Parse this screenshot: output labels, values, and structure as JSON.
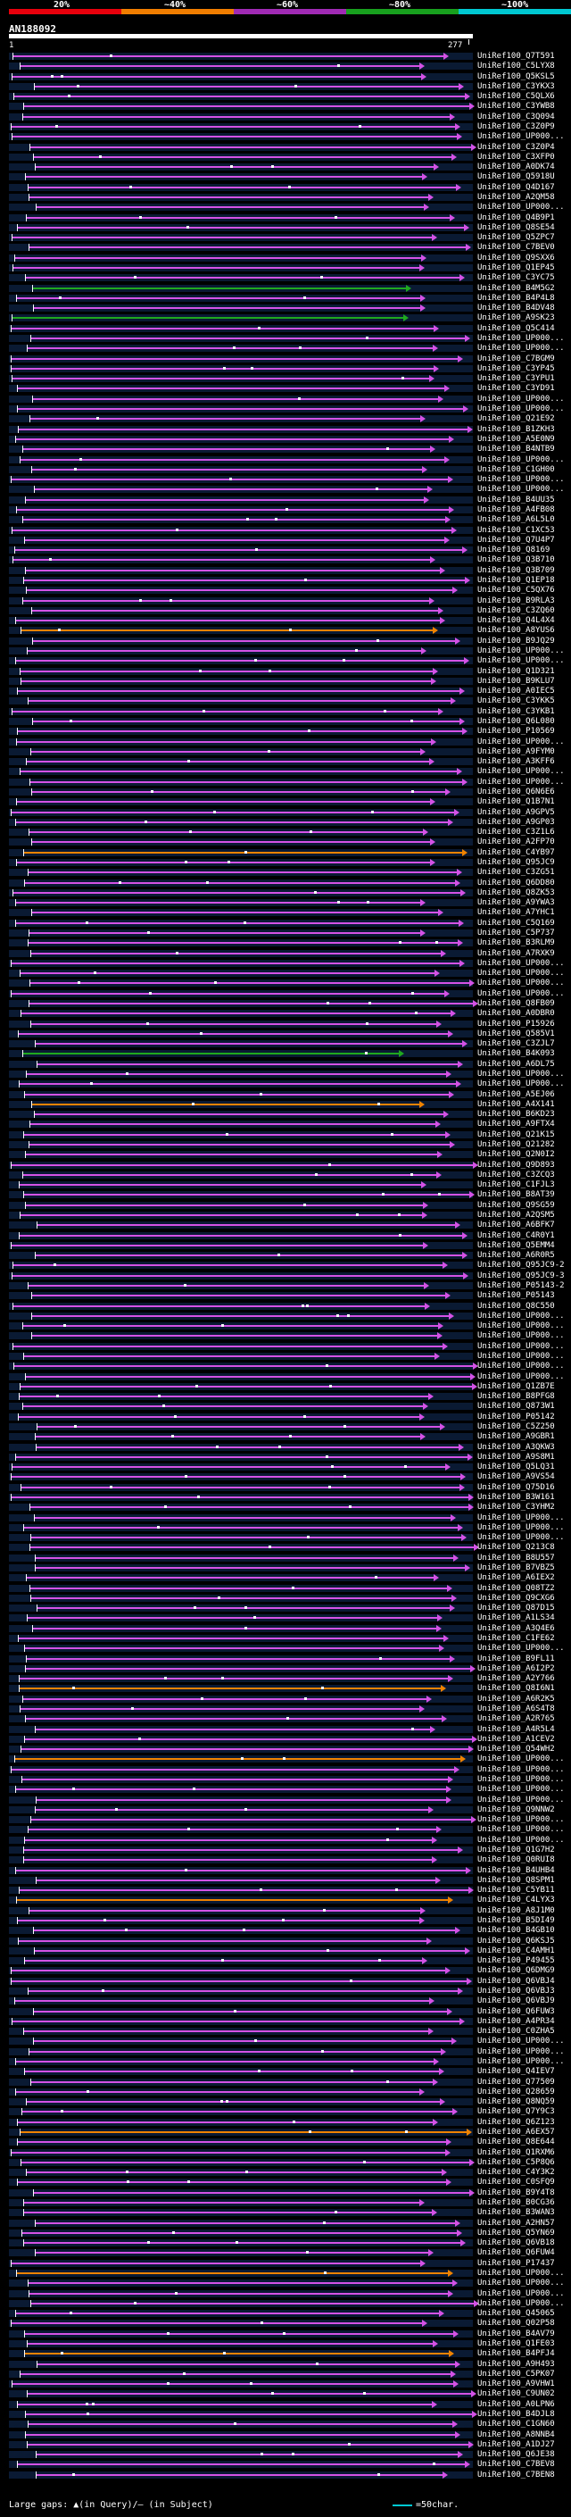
{
  "legend": {
    "items": [
      {
        "label": "20%",
        "color": "#e8000c"
      },
      {
        "label": "~40%",
        "color": "#f07d00"
      },
      {
        "label": "~60%",
        "color": "#a02ab4"
      },
      {
        "label": "~80%",
        "color": "#18a01e"
      },
      {
        "label": "~100%",
        "color": "#00c8d2"
      }
    ]
  },
  "query": {
    "name": "AN188092",
    "start": "1",
    "end": "277"
  },
  "colors": {
    "pink": "#d452e6",
    "green": "#1fa81f",
    "orange": "#f08300",
    "cyan": "#00c8d2"
  },
  "hits": [
    "UniRef100_Q7T591",
    "UniRef100_C5LYX8",
    "UniRef100_Q5KSL5",
    "UniRef100_C3YKX3",
    "UniRef100_C5QLX6",
    "UniRef100_C3YWB8",
    "UniRef100_C3Q094",
    "UniRef100_C3Z0P9",
    "UniRef100_UP000...",
    "UniRef100_C3Z0P4",
    "UniRef100_C3XFP0",
    "UniRef100_A0DK74",
    "UniRef100_Q5918U",
    "UniRef100_Q4D167",
    "UniRef100_A2QM58",
    "UniRef100_UP000...",
    "UniRef100_Q4B9P1",
    "UniRef100_Q8SE54",
    "UniRef100_Q5ZPC7",
    "UniRef100_C7BEV0",
    "UniRef100_Q9SXX6",
    "UniRef100_Q1EP45",
    "UniRef100_C3YC75",
    "UniRef100_B4M5G2",
    "UniRef100_B4P4L8",
    "UniRef100_B4DV48",
    "UniRef100_A9SK23",
    "UniRef100_Q5C414",
    "UniRef100_UP000...",
    "UniRef100_UP000...",
    "UniRef100_C7BGM9",
    "UniRef100_C3YP45",
    "UniRef100_C3YPU1",
    "UniRef100_C3YD91",
    "UniRef100_UP000...",
    "UniRef100_UP000...",
    "UniRef100_Q21E92",
    "UniRef100_B1ZKH3",
    "UniRef100_A5E0N9",
    "UniRef100_B4NTB9",
    "UniRef100_UP000...",
    "UniRef100_C1GH00",
    "UniRef100_UP000...",
    "UniRef100_UP000...",
    "UniRef100_B4UU35",
    "UniRef100_A4FB08",
    "UniRef100_A6L5L0",
    "UniRef100_C1XC53",
    "UniRef100_Q7U4P7",
    "UniRef100_Q8169",
    "UniRef100_Q3B710",
    "UniRef100_Q3B709",
    "UniRef100_Q1EP18",
    "UniRef100_C5QX76",
    "UniRef100_B9RLA3",
    "UniRef100_C3ZQ60",
    "UniRef100_Q4L4X4",
    "UniRef100_A8YUS6",
    "UniRef100_B9JQ29",
    "UniRef100_UP000...",
    "UniRef100_UP000...",
    "UniRef100_Q1D321",
    "UniRef100_B9KLU7",
    "UniRef100_A0IEC5",
    "UniRef100_C3YKK5",
    "UniRef100_C3YKB1",
    "UniRef100_Q6L080",
    "UniRef100_P10569",
    "UniRef100_UP000...",
    "UniRef100_A9FYM0",
    "UniRef100_A3KFF6",
    "UniRef100_UP000...",
    "UniRef100_UP000...",
    "UniRef100_Q6N6E6",
    "UniRef100_Q1B7N1",
    "UniRef100_A9GPV5",
    "UniRef100_A9GP03",
    "UniRef100_C3Z1L6",
    "UniRef100_A2FP70",
    "UniRef100_C4YB97",
    "UniRef100_Q95JC9",
    "UniRef100_C3ZG51",
    "UniRef100_Q6DD80",
    "UniRef100_Q8ZK53",
    "UniRef100_A9YWA3",
    "UniRef100_A7YHC1",
    "UniRef100_C5Q169",
    "UniRef100_C5P737",
    "UniRef100_B3RLM9",
    "UniRef100_A7RXK9",
    "UniRef100_UP000...",
    "UniRef100_UP000...",
    "UniRef100_UP000...",
    "UniRef100_UP000...",
    "UniRef100_Q8FB09",
    "UniRef100_A0DBR0",
    "UniRef100_P15926",
    "UniRef100_Q585V1",
    "UniRef100_C3ZJL7",
    "UniRef100_B4K093",
    "UniRef100_A6DL75",
    "UniRef100_UP000...",
    "UniRef100_UP000...",
    "UniRef100_A5EJ06",
    "UniRef100_A4X141",
    "UniRef100_B6KD23",
    "UniRef100_A9FTX4",
    "UniRef100_Q21K15",
    "UniRef100_Q21282",
    "UniRef100_Q2N0I2",
    "UniRef100_Q9D893",
    "UniRef100_C3ZCQ3",
    "UniRef100_C1FJL3",
    "UniRef100_B8AT39",
    "UniRef100_Q9SG59",
    "UniRef100_A2QSM5",
    "UniRef100_A6BFK7",
    "UniRef100_C4R0Y1",
    "UniRef100_Q5EMM4",
    "UniRef100_A6R0R5",
    "UniRef100_Q95JC9-2",
    "UniRef100_Q95JC9-3",
    "UniRef100_P05143-2",
    "UniRef100_P05143",
    "UniRef100_Q8C550",
    "UniRef100_UP000...",
    "UniRef100_UP000...",
    "UniRef100_UP000...",
    "UniRef100_UP000...",
    "UniRef100_UP000...",
    "UniRef100_UP000...",
    "UniRef100_UP000...",
    "UniRef100_Q1ZB7E",
    "UniRef100_B8PFG8",
    "UniRef100_Q873W1",
    "UniRef100_P05142",
    "UniRef100_C5Z250",
    "UniRef100_A9GBR1",
    "UniRef100_A3QKW3",
    "UniRef100_A9S8M1",
    "UniRef100_Q5LQ31",
    "UniRef100_A9VS54",
    "UniRef100_Q75D16",
    "UniRef100_B3W161",
    "UniRef100_C3YHM2",
    "UniRef100_UP000...",
    "UniRef100_UP000...",
    "UniRef100_UP000...",
    "UniRef100_Q213C8",
    "UniRef100_B8U557",
    "UniRef100_B7VBZ5",
    "UniRef100_A6IEX2",
    "UniRef100_Q08TZ2",
    "UniRef100_Q9CXG6",
    "UniRef100_Q87D15",
    "UniRef100_A1LS34",
    "UniRef100_A3Q4E6",
    "UniRef100_C1FE62",
    "UniRef100_UP000...",
    "UniRef100_B9FL11",
    "UniRef100_A6I2P2",
    "UniRef100_A2Y766",
    "UniRef100_Q8I6N1",
    "UniRef100_A6R2K5",
    "UniRef100_A6S4T8",
    "UniRef100_A2R765",
    "UniRef100_A4R5L4",
    "UniRef100_A1CEV2",
    "UniRef100_Q54WH2",
    "UniRef100_UP000...",
    "UniRef100_UP000...",
    "UniRef100_UP000...",
    "UniRef100_UP000...",
    "UniRef100_UP000...",
    "UniRef100_Q9NNW2",
    "UniRef100_UP000...",
    "UniRef100_UP000...",
    "UniRef100_UP000...",
    "UniRef100_Q1G7H2",
    "UniRef100_Q0RUI8",
    "UniRef100_B4UHB4",
    "UniRef100_Q8SPM1",
    "UniRef100_C5YB11",
    "UniRef100_C4LYX3",
    "UniRef100_A8J1M0",
    "UniRef100_B5DI49",
    "UniRef100_B4GB10",
    "UniRef100_Q6KSJ5",
    "UniRef100_C4AMH1",
    "UniRef100_P49455",
    "UniRef100_Q6DMG9",
    "UniRef100_Q6VBJ4",
    "UniRef100_Q6VBJ3",
    "UniRef100_Q6VBJ9",
    "UniRef100_Q6FUW3",
    "UniRef100_A4PR34",
    "UniRef100_C0ZHA5",
    "UniRef100_UP000...",
    "UniRef100_UP000...",
    "UniRef100_UP000...",
    "UniRef100_Q4IEV7",
    "UniRef100_Q77509",
    "UniRef100_Q28659",
    "UniRef100_Q8NQ59",
    "UniRef100_Q7Y9C3",
    "UniRef100_Q6Z123",
    "UniRef100_A6EX57",
    "UniRef100_Q8E644",
    "UniRef100_Q1RXM6",
    "UniRef100_C5P8Q6",
    "UniRef100_C4Y3K2",
    "UniRef100_C0SFQ9",
    "UniRef100_B9Y4T8",
    "UniRef100_B0CG36",
    "UniRef100_B3WAN3",
    "UniRef100_A2HN57",
    "UniRef100_Q5YN69",
    "UniRef100_Q6VB18",
    "UniRef100_Q6FUW4",
    "UniRef100_P17437",
    "UniRef100_UP000...",
    "UniRef100_UP000...",
    "UniRef100_UP000...",
    "UniRef100_UP000...",
    "UniRef100_Q45065",
    "UniRef100_Q02P58",
    "UniRef100_B4AV79",
    "UniRef100_Q1FE03",
    "UniRef100_B4PFJ4",
    "UniRef100_A9H493",
    "UniRef100_C5PK07",
    "UniRef100_A9VHW1",
    "UniRef100_C9UN02",
    "UniRef100_A0LPN6",
    "UniRef100_B4DJL8",
    "UniRef100_C1GN60",
    "UniRef100_A8NNB4",
    "UniRef100_A1DJ27",
    "UniRef100_Q6JE38",
    "UniRef100_C7BEV8",
    "UniRef100_C7BEN8"
  ],
  "footer": {
    "large_gaps": "Large gaps: ▲(in Query)/— (in Subject)",
    "scale": "=50char."
  }
}
